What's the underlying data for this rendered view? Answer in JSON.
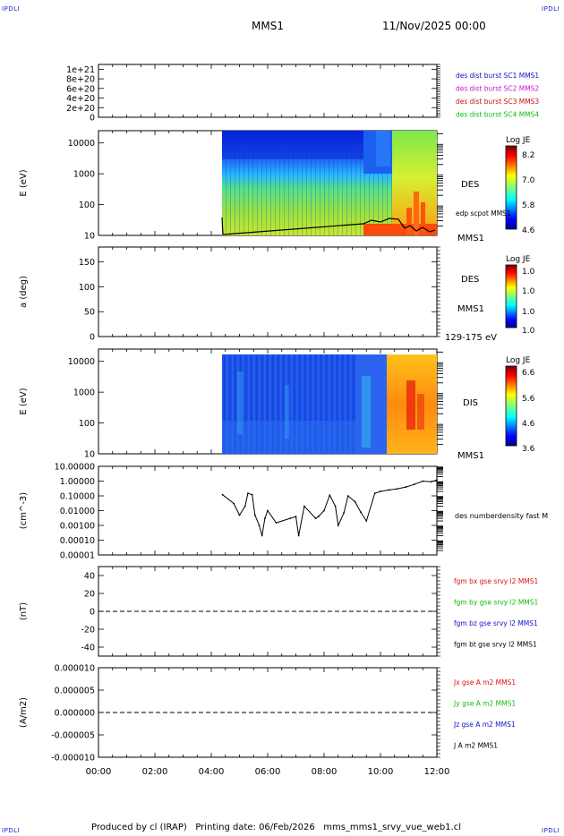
{
  "header": {
    "corner_label": "IPDLI",
    "title": "MMS1",
    "date": "11/Nov/2025 00:00"
  },
  "footer": {
    "text": "Produced by cl (IRAP)   Printing date: 06/Feb/2026   mms_mms1_srvy_vue_web1.cl"
  },
  "colors": {
    "frame": "#000000",
    "sc1": "#1010cc",
    "sc2": "#cc10cc",
    "sc3": "#cc1010",
    "sc4": "#10bb10",
    "bx": "#dd1010",
    "by": "#10bb10",
    "bz": "#1010cc",
    "bt": "#000000"
  },
  "chart_data": [
    {
      "type": "line",
      "panel": "flux-lines",
      "y_tick_labels": [
        "1e+21",
        "8e+20",
        "6e+20",
        "4e+20",
        "2e+20",
        "0"
      ],
      "ylim": [
        0,
        1.1e+21
      ],
      "reference_line": 0,
      "series": [
        {
          "name": "des dist burst SC1 MMS1",
          "color_key": "sc1",
          "values": []
        },
        {
          "name": "des dist burst SC2 MMS2",
          "color_key": "sc2",
          "values": []
        },
        {
          "name": "des dist burst SC3 MMS3",
          "color_key": "sc3",
          "values": []
        },
        {
          "name": "des dist burst SC4 MMS4",
          "color_key": "sc4",
          "values": []
        }
      ]
    },
    {
      "type": "heatmap",
      "panel": "des-spectrogram",
      "ylabel": "E (eV)",
      "scale": "log",
      "ylim": [
        10,
        25000
      ],
      "y_tick_labels": [
        "10000",
        "1000",
        "100",
        "10"
      ],
      "label": "DES",
      "sublabel": "MMS1",
      "overlay_label": "edp scpot MMS1",
      "colorbar": {
        "title": "Log JE",
        "ticks": [
          "8.2",
          "7.0",
          "5.8",
          "4.6"
        ]
      },
      "data_start_hour": 4.4
    },
    {
      "type": "heatmap",
      "panel": "des-pitch",
      "ylabel": "a (deg)",
      "ylim": [
        0,
        180
      ],
      "y_tick_labels": [
        "150",
        "100",
        "50",
        "0"
      ],
      "label": "DES",
      "sublabel": "MMS1",
      "energy_range": "129-175 eV",
      "colorbar": {
        "title": "Log JE",
        "ticks": [
          "1.0",
          "1.0",
          "1.0",
          "1.0"
        ]
      }
    },
    {
      "type": "heatmap",
      "panel": "dis-spectrogram",
      "ylabel": "E (eV)",
      "scale": "log",
      "ylim": [
        10,
        25000
      ],
      "y_tick_labels": [
        "10000",
        "1000",
        "100",
        "10"
      ],
      "label": "DIS",
      "sublabel": "MMS1",
      "colorbar": {
        "title": "Log JE",
        "ticks": [
          "6.6",
          "5.6",
          "4.6",
          "3.6"
        ]
      },
      "data_start_hour": 4.4
    },
    {
      "type": "line",
      "panel": "density",
      "ylabel": "(cm^-3)",
      "scale": "log",
      "ylim": [
        1e-05,
        10
      ],
      "y_tick_labels": [
        "10.00000",
        "1.00000",
        "0.10000",
        "0.01000",
        "0.00100",
        "0.00010",
        "0.00001"
      ],
      "series": [
        {
          "name": "des numberdensity fast M",
          "x_hours": [
            4.4,
            4.8,
            5.0,
            5.2,
            5.3,
            5.45,
            5.55,
            5.7,
            5.8,
            5.9,
            6.0,
            6.3,
            6.8,
            7.0,
            7.1,
            7.3,
            7.7,
            7.8,
            8.0,
            8.2,
            8.4,
            8.5,
            8.7,
            8.85,
            9.1,
            9.3,
            9.5,
            9.8,
            10.0,
            10.3,
            10.6,
            10.9,
            11.2,
            11.5,
            11.8,
            12.0
          ],
          "values": [
            0.12,
            0.03,
            0.005,
            0.02,
            0.15,
            0.12,
            0.005,
            0.001,
            0.0002,
            0.003,
            0.01,
            0.0015,
            0.003,
            0.004,
            0.0002,
            0.02,
            0.003,
            0.004,
            0.01,
            0.11,
            0.02,
            0.001,
            0.007,
            0.1,
            0.04,
            0.008,
            0.002,
            0.15,
            0.2,
            0.25,
            0.3,
            0.4,
            0.6,
            1.0,
            0.9,
            1.2
          ]
        }
      ]
    },
    {
      "type": "line",
      "panel": "magnetic-field",
      "ylabel": "(nT)",
      "ylim": [
        -50,
        50
      ],
      "y_tick_labels": [
        "40",
        "20",
        "0",
        "-20",
        "-40"
      ],
      "reference_line": 0,
      "series": [
        {
          "name": "fgm bx gse srvy l2 MMS1",
          "color_key": "bx",
          "values": []
        },
        {
          "name": "fgm by gse srvy l2 MMS1",
          "color_key": "by",
          "values": []
        },
        {
          "name": "fgm bz gse srvy l2 MMS1",
          "color_key": "bz",
          "values": []
        },
        {
          "name": "fgm bt gse srvy l2 MMS1",
          "color_key": "bt",
          "values": []
        }
      ]
    },
    {
      "type": "line",
      "panel": "current-density",
      "ylabel": "(A/m2)",
      "ylim": [
        -1e-05,
        1e-05
      ],
      "y_tick_labels": [
        "0.000010",
        "0.000005",
        "0.000000",
        "-0.000005",
        "-0.000010"
      ],
      "reference_line": 0,
      "x_tick_labels": [
        "00:00",
        "02:00",
        "04:00",
        "06:00",
        "08:00",
        "10:00",
        "12:00"
      ],
      "xlim_hours": [
        0,
        12
      ],
      "series": [
        {
          "name": "Jx gse A m2 MMS1",
          "color_key": "bx",
          "values": []
        },
        {
          "name": "Jy gse A m2 MMS1",
          "color_key": "by",
          "values": []
        },
        {
          "name": "Jz gse A m2 MMS1",
          "color_key": "bz",
          "values": []
        },
        {
          "name": "J A m2 MMS1",
          "color_key": "bt",
          "values": []
        }
      ]
    }
  ]
}
